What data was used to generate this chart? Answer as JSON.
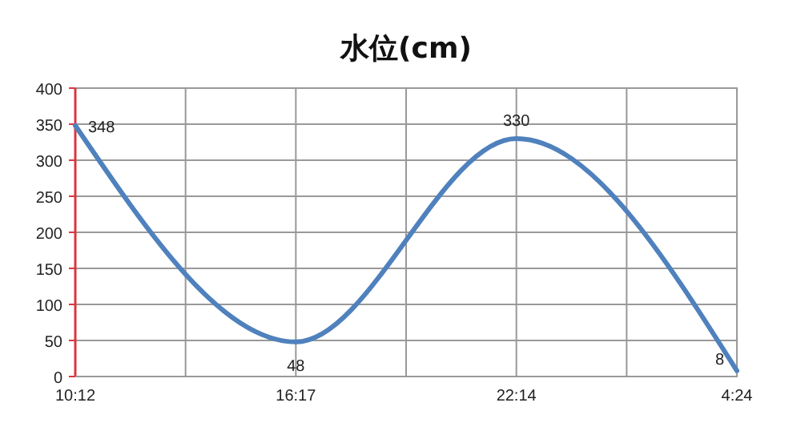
{
  "chart_data": {
    "type": "line",
    "title": "水位(cm)",
    "categories": [
      "10:12",
      "16:17",
      "22:14",
      "4:24"
    ],
    "series": [
      {
        "color": "#4f81bd",
        "values": [
          348,
          48,
          330,
          8
        ]
      }
    ],
    "ylim": [
      0,
      400
    ],
    "yticks": [
      0,
      50,
      100,
      150,
      200,
      250,
      300,
      350,
      400
    ],
    "grid": true,
    "data_labels": true,
    "marker": "none",
    "line_style": "solid"
  }
}
